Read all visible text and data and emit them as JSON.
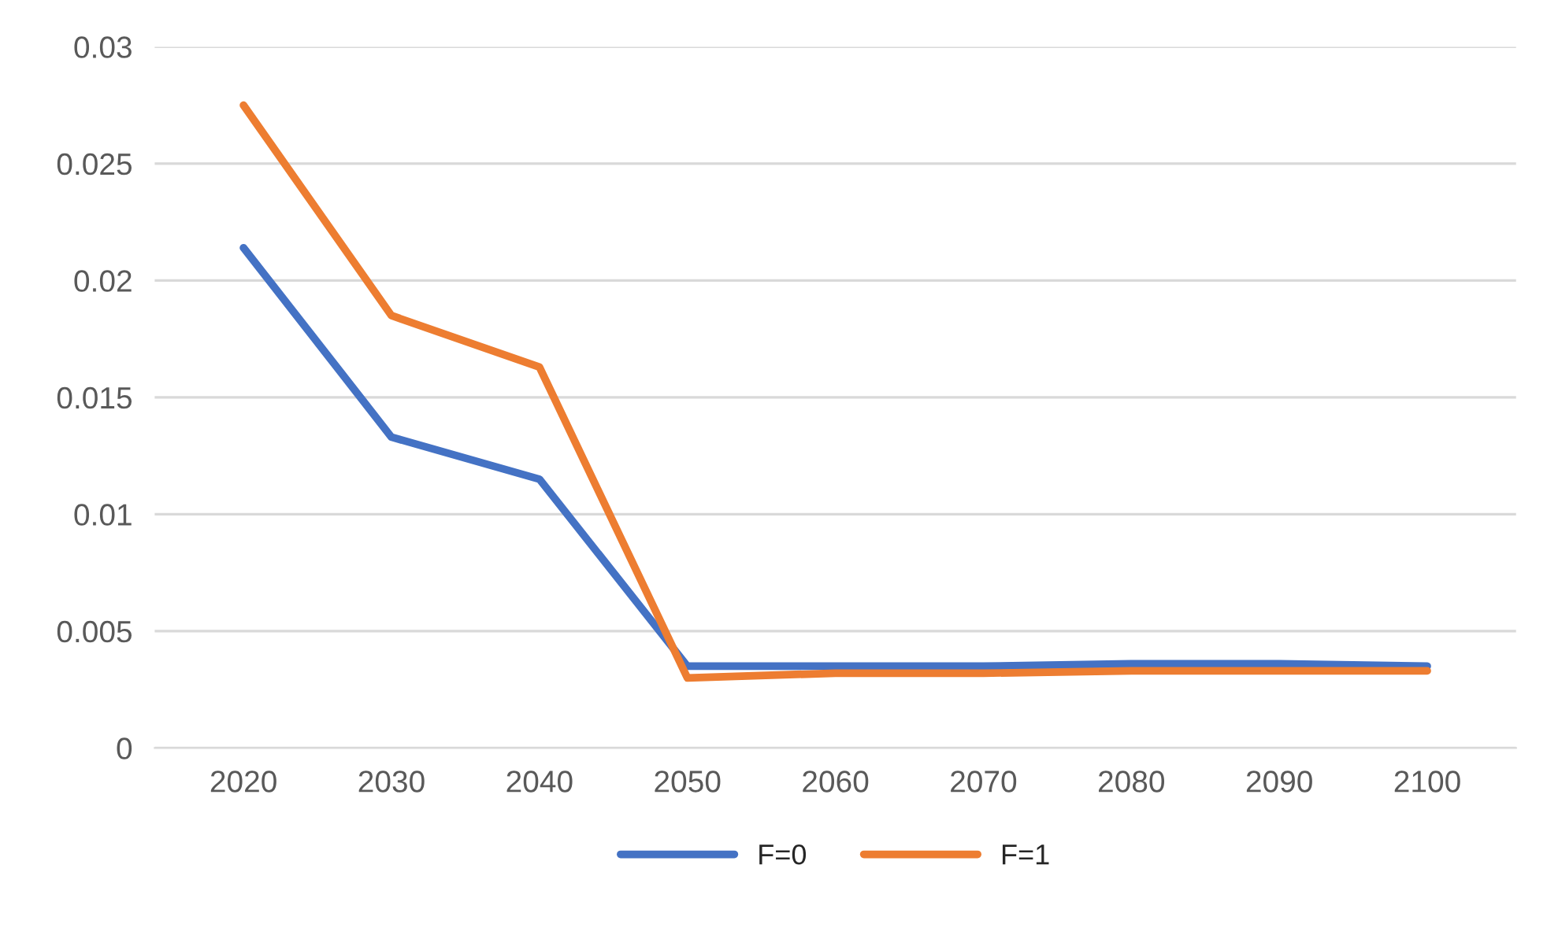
{
  "chart_data": {
    "type": "line",
    "categories": [
      "2020",
      "2030",
      "2040",
      "2050",
      "2060",
      "2070",
      "2080",
      "2090",
      "2100"
    ],
    "series": [
      {
        "name": "F=0",
        "color": "#4472c4",
        "values": [
          0.0214,
          0.0133,
          0.0115,
          0.0035,
          0.0035,
          0.0035,
          0.0036,
          0.0036,
          0.0035
        ]
      },
      {
        "name": "F=1",
        "color": "#ed7d31",
        "values": [
          0.0275,
          0.0185,
          0.0163,
          0.003,
          0.0032,
          0.0032,
          0.0033,
          0.0033,
          0.0033
        ]
      }
    ],
    "ylim": [
      0,
      0.03
    ],
    "yticks": [
      0,
      0.005,
      0.01,
      0.015,
      0.02,
      0.025,
      0.03
    ],
    "grid": "y",
    "legend": "bottom",
    "marker": "none",
    "line_style": "solid"
  }
}
